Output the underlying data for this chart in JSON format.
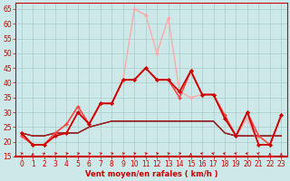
{
  "xlabel": "Vent moyen/en rafales ( km/h )",
  "bg_color": "#cce8e8",
  "grid_color": "#aacccc",
  "xlim": [
    -0.5,
    23.5
  ],
  "ylim": [
    15,
    67
  ],
  "yticks": [
    15,
    20,
    25,
    30,
    35,
    40,
    45,
    50,
    55,
    60,
    65
  ],
  "xticks": [
    0,
    1,
    2,
    3,
    4,
    5,
    6,
    7,
    8,
    9,
    10,
    11,
    12,
    13,
    14,
    15,
    16,
    17,
    18,
    19,
    20,
    21,
    22,
    23
  ],
  "series": [
    {
      "x": [
        0,
        1,
        2,
        3,
        4,
        5,
        6,
        7,
        8,
        9,
        10,
        11,
        12,
        13,
        14,
        15,
        16,
        17,
        18,
        19,
        20,
        21,
        22,
        23
      ],
      "y": [
        23,
        19,
        19,
        22,
        23,
        30,
        26,
        33,
        33,
        41,
        65,
        63,
        50,
        62,
        37,
        35,
        36,
        36,
        28,
        22,
        28,
        19,
        19,
        29
      ],
      "color": "#ffaaaa",
      "lw": 1.0,
      "marker": "D",
      "ms": 2.0
    },
    {
      "x": [
        0,
        1,
        2,
        3,
        4,
        5,
        6,
        7,
        8,
        9,
        10,
        11,
        12,
        13,
        14,
        15,
        16,
        17,
        18,
        19,
        20,
        21,
        22,
        23
      ],
      "y": [
        22,
        19,
        19,
        23,
        26,
        32,
        26,
        33,
        33,
        41,
        41,
        45,
        41,
        41,
        35,
        44,
        36,
        36,
        29,
        22,
        30,
        22,
        19,
        29
      ],
      "color": "#ff4444",
      "lw": 1.2,
      "marker": "D",
      "ms": 2.0
    },
    {
      "x": [
        0,
        1,
        2,
        3,
        4,
        5,
        6,
        7,
        8,
        9,
        10,
        11,
        12,
        13,
        14,
        15,
        16,
        17,
        18,
        19,
        20,
        21,
        22,
        23
      ],
      "y": [
        23,
        19,
        19,
        22,
        23,
        30,
        26,
        33,
        33,
        41,
        41,
        45,
        41,
        41,
        37,
        44,
        36,
        36,
        28,
        22,
        30,
        19,
        19,
        29
      ],
      "color": "#cc0000",
      "lw": 1.3,
      "marker": "D",
      "ms": 2.2
    },
    {
      "x": [
        0,
        1,
        2,
        3,
        4,
        5,
        6,
        7,
        8,
        9,
        10,
        11,
        12,
        13,
        14,
        15,
        16,
        17,
        18,
        19,
        20,
        21,
        22,
        23
      ],
      "y": [
        23,
        22,
        22,
        23,
        23,
        23,
        25,
        26,
        27,
        27,
        27,
        27,
        27,
        27,
        27,
        27,
        27,
        27,
        23,
        22,
        22,
        22,
        22,
        22
      ],
      "color": "#660000",
      "lw": 1.0,
      "marker": null,
      "ms": 0
    },
    {
      "x": [
        0,
        1,
        2,
        3,
        4,
        5,
        6,
        7,
        8,
        9,
        10,
        11,
        12,
        13,
        14,
        15,
        16,
        17,
        18,
        19,
        20,
        21,
        22,
        23
      ],
      "y": [
        23,
        22,
        22,
        23,
        23,
        23,
        25,
        26,
        27,
        27,
        27,
        27,
        27,
        27,
        27,
        27,
        27,
        27,
        23,
        22,
        22,
        22,
        22,
        22
      ],
      "color": "#aa2222",
      "lw": 0.8,
      "marker": null,
      "ms": 0
    }
  ],
  "arrow_data": {
    "x": [
      0,
      1,
      2,
      3,
      4,
      5,
      6,
      7,
      8,
      9,
      10,
      11,
      12,
      13,
      14,
      15,
      16,
      17,
      18,
      19,
      20,
      21,
      22,
      23
    ],
    "angles": [
      45,
      0,
      30,
      45,
      45,
      45,
      45,
      45,
      45,
      45,
      45,
      45,
      45,
      45,
      45,
      0,
      315,
      315,
      315,
      315,
      315,
      315,
      0,
      0
    ],
    "y": 16.0
  },
  "tick_fontsize": 5.5,
  "xlabel_fontsize": 6.0
}
